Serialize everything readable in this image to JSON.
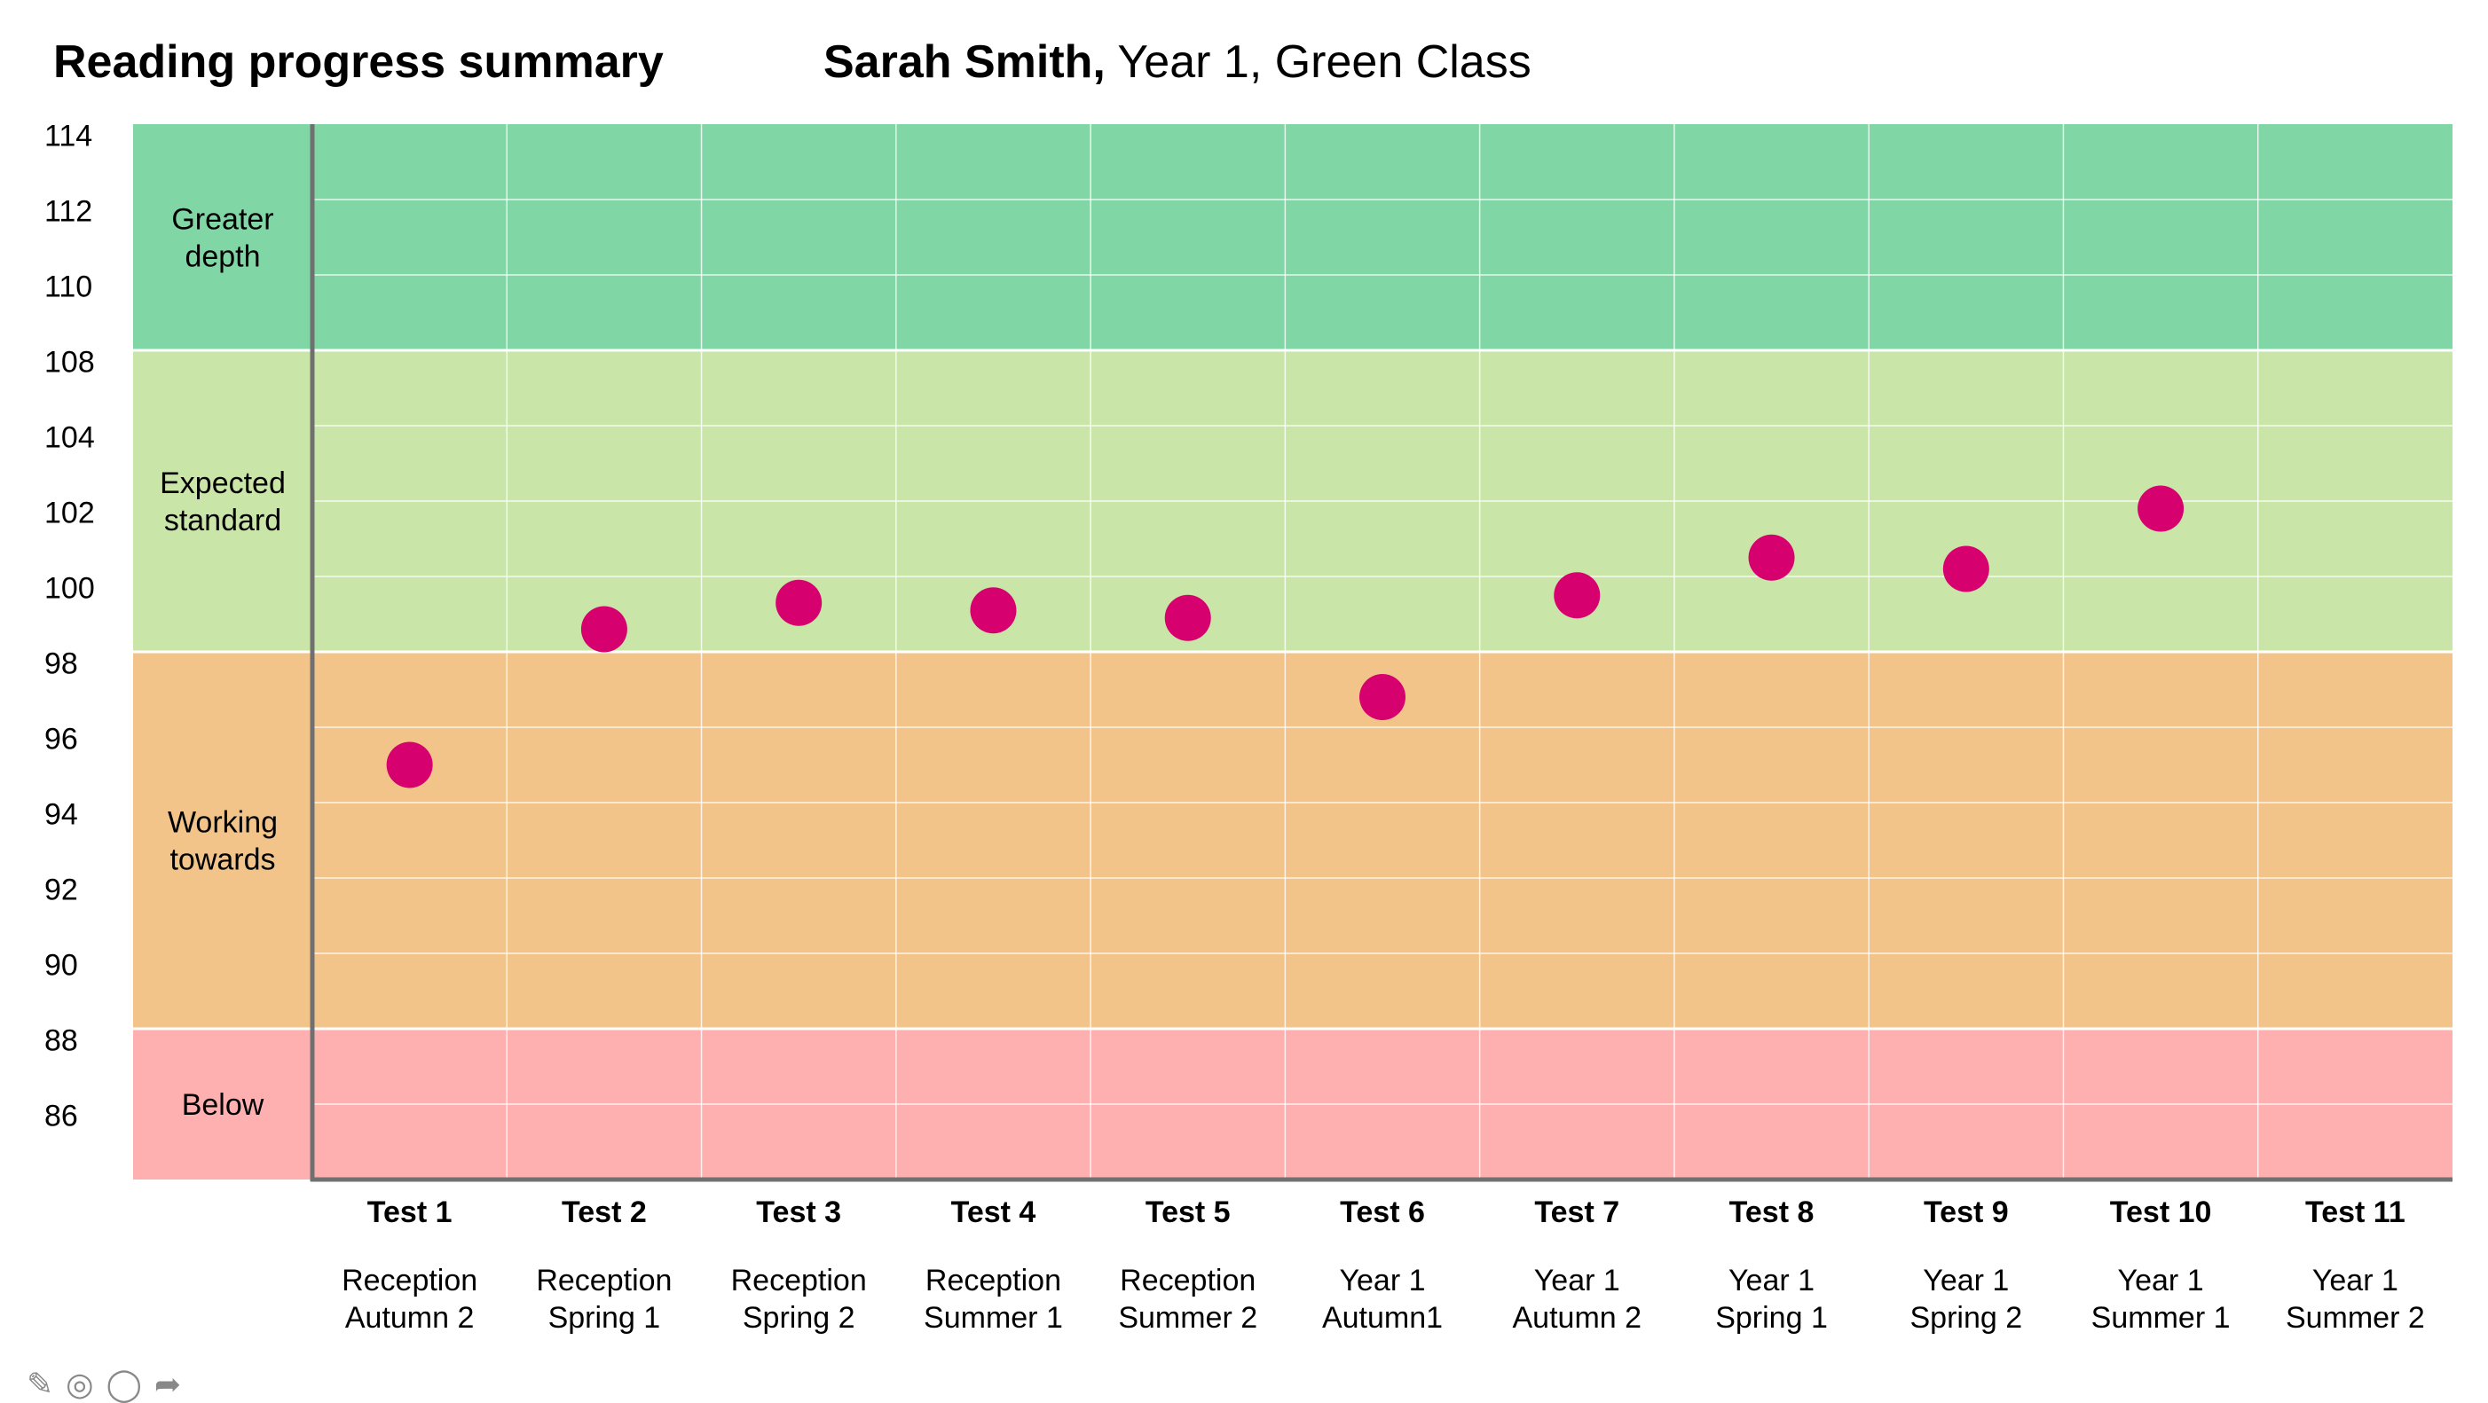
{
  "header": {
    "title": "Reading progress summary",
    "student_name": "Sarah Smith,",
    "student_details": "Year 1, Green Class"
  },
  "chart_data": {
    "type": "scatter",
    "title": "Reading progress summary",
    "subtitle": "Sarah Smith, Year 1, Green Class",
    "y_ticks": [
      114,
      112,
      110,
      108,
      104,
      102,
      100,
      98,
      96,
      94,
      92,
      90,
      88,
      86
    ],
    "bands": [
      {
        "label": "Greater depth",
        "color": "#80d6a4",
        "from_row": 0,
        "to_row": 3
      },
      {
        "label": "Expected standard",
        "color": "#c9e6a8",
        "from_row": 3,
        "to_row": 7
      },
      {
        "label": "Working towards",
        "color": "#f2c48a",
        "from_row": 7,
        "to_row": 12
      },
      {
        "label": "Below",
        "color": "#feb0b0",
        "from_row": 12,
        "to_row": 14
      }
    ],
    "categories": [
      {
        "test": "Test 1",
        "term1": "Reception",
        "term2": "Autumn 2"
      },
      {
        "test": "Test 2",
        "term1": "Reception",
        "term2": "Spring 1"
      },
      {
        "test": "Test 3",
        "term1": "Reception",
        "term2": "Spring 2"
      },
      {
        "test": "Test 4",
        "term1": "Reception",
        "term2": "Summer 1"
      },
      {
        "test": "Test 5",
        "term1": "Reception",
        "term2": "Summer 2"
      },
      {
        "test": "Test 6",
        "term1": "Year 1",
        "term2": "Autumn1"
      },
      {
        "test": "Test 7",
        "term1": "Year 1",
        "term2": "Autumn 2"
      },
      {
        "test": "Test 8",
        "term1": "Year 1",
        "term2": "Spring 1"
      },
      {
        "test": "Test 9",
        "term1": "Year 1",
        "term2": "Spring 2"
      },
      {
        "test": "Test 10",
        "term1": "Year 1",
        "term2": "Summer 1"
      },
      {
        "test": "Test 11",
        "term1": "Year 1",
        "term2": "Summer 2"
      }
    ],
    "series": [
      {
        "color": "#d6006e",
        "points": [
          {
            "test": "Test 1",
            "score": 96
          },
          {
            "test": "Test 2",
            "score": 99.6
          },
          {
            "test": "Test 3",
            "score": 100.3
          },
          {
            "test": "Test 4",
            "score": 100.1
          },
          {
            "test": "Test 5",
            "score": 99.9
          },
          {
            "test": "Test 6",
            "score": 97.8
          },
          {
            "test": "Test 7",
            "score": 100.5
          },
          {
            "test": "Test 8",
            "score": 101.5
          },
          {
            "test": "Test 9",
            "score": 101.2
          },
          {
            "test": "Test 10",
            "score": 102.8
          }
        ]
      }
    ],
    "grid": true,
    "legend": "none"
  }
}
